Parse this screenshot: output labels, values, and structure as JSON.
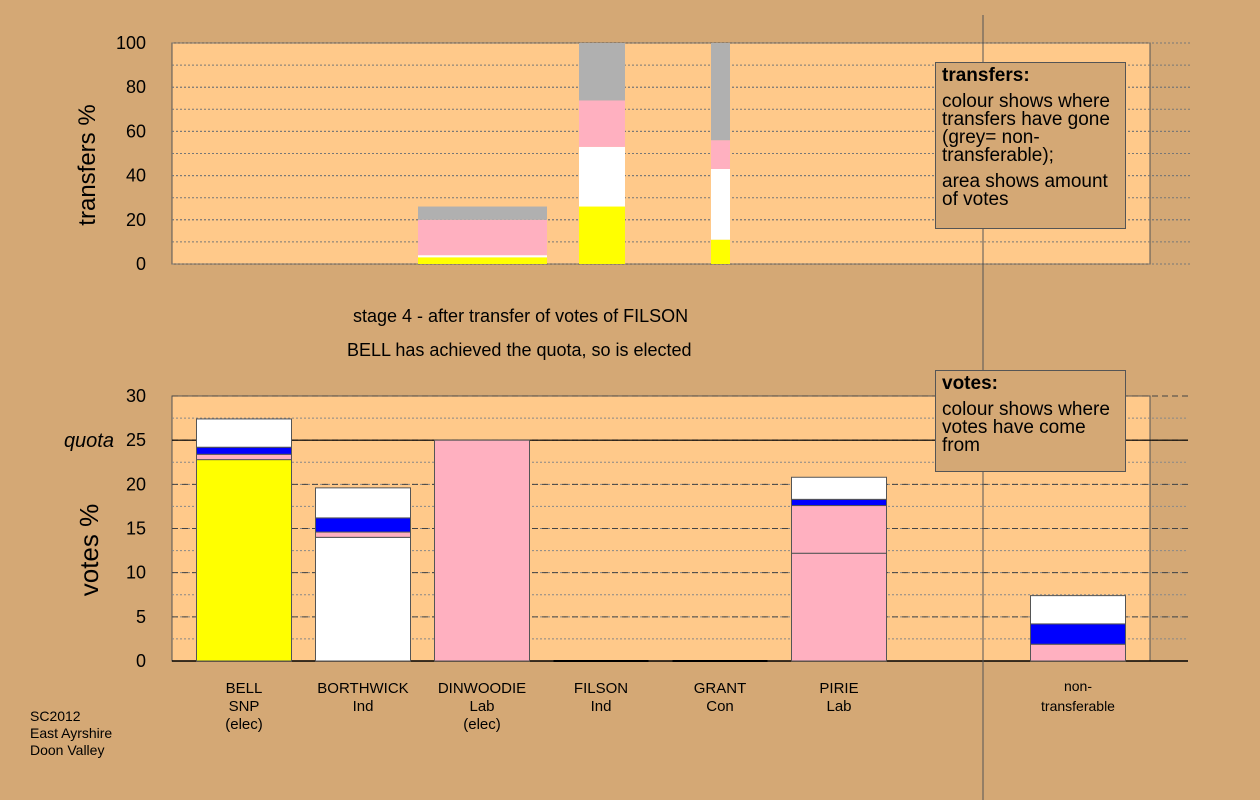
{
  "stage_title": "stage 4 - after transfer of votes of FILSON",
  "stage_note": "BELL has achieved the quota, so is elected",
  "footer": {
    "l1": "SC2012",
    "l2": "East Ayrshire",
    "l3": "Doon Valley"
  },
  "legend_transfers": {
    "title": "transfers:",
    "p1": "colour shows where transfers have gone (grey= non-transferable);",
    "p2": "area shows amount of votes"
  },
  "legend_votes": {
    "title": "votes:",
    "p1": "colour shows where votes have come from"
  },
  "colors": {
    "background": "#d4a875",
    "plot": "#ffc98a",
    "SNP": "#ffff00",
    "Lab": "#ffb0c0",
    "Ind": "#ffffff",
    "Con": "#0000ff",
    "non-transferable": "#b0b0b0"
  },
  "chart_data": [
    {
      "type": "bar",
      "ylabel": "transfers %",
      "ylim": [
        0,
        100
      ],
      "yticks": [
        "0",
        "20",
        "40",
        "60",
        "80",
        "100"
      ],
      "note": "stacked transfer bars; bar width is proportional to number of votes transferred",
      "bars": [
        {
          "segments": [
            {
              "party": "SNP",
              "value": 3
            },
            {
              "party": "Ind",
              "value": 1
            },
            {
              "party": "Lab",
              "value": 16
            },
            {
              "party": "non-transferable",
              "value": 6
            }
          ]
        },
        {
          "segments": [
            {
              "party": "SNP",
              "value": 26
            },
            {
              "party": "Ind",
              "value": 27
            },
            {
              "party": "Lab",
              "value": 21
            },
            {
              "party": "non-transferable",
              "value": 26
            }
          ]
        },
        {
          "segments": [
            {
              "party": "SNP",
              "value": 11
            },
            {
              "party": "Ind",
              "value": 32
            },
            {
              "party": "Lab",
              "value": 13
            },
            {
              "party": "non-transferable",
              "value": 44
            }
          ]
        }
      ]
    },
    {
      "type": "bar",
      "ylabel": "votes %",
      "ylim": [
        0,
        30
      ],
      "yticks": [
        "0",
        "5",
        "10",
        "15",
        "20",
        "25",
        "30"
      ],
      "quota": 25,
      "quota_label": "quota",
      "categories": [
        {
          "name": "BELL",
          "party": "SNP",
          "status": "(elec)"
        },
        {
          "name": "BORTHWICK",
          "party": "Ind",
          "status": ""
        },
        {
          "name": "DINWOODIE",
          "party": "Lab",
          "status": "(elec)"
        },
        {
          "name": "FILSON",
          "party": "Ind",
          "status": ""
        },
        {
          "name": "GRANT",
          "party": "Con",
          "status": ""
        },
        {
          "name": "PIRIE",
          "party": "Lab",
          "status": ""
        },
        {
          "name": "non-",
          "party": "transferable",
          "status": ""
        }
      ],
      "stacks": [
        [
          {
            "party": "SNP",
            "value": 22.8
          },
          {
            "party": "Lab",
            "value": 0.6
          },
          {
            "party": "Con",
            "value": 0.8
          },
          {
            "party": "Ind",
            "value": 3.2
          }
        ],
        [
          {
            "party": "Ind",
            "value": 14.0
          },
          {
            "party": "Lab",
            "value": 0.6
          },
          {
            "party": "Con",
            "value": 1.6
          },
          {
            "party": "Ind",
            "value": 3.4
          }
        ],
        [
          {
            "party": "Lab",
            "value": 25.0
          }
        ],
        [],
        [],
        [
          {
            "party": "Lab",
            "value": 12.2
          },
          {
            "party": "Lab",
            "value": 5.4
          },
          {
            "party": "Con",
            "value": 0.7
          },
          {
            "party": "Ind",
            "value": 2.5
          }
        ],
        [
          {
            "party": "Lab",
            "value": 1.9
          },
          {
            "party": "Con",
            "value": 2.3
          },
          {
            "party": "Ind",
            "value": 3.2
          }
        ]
      ]
    }
  ]
}
